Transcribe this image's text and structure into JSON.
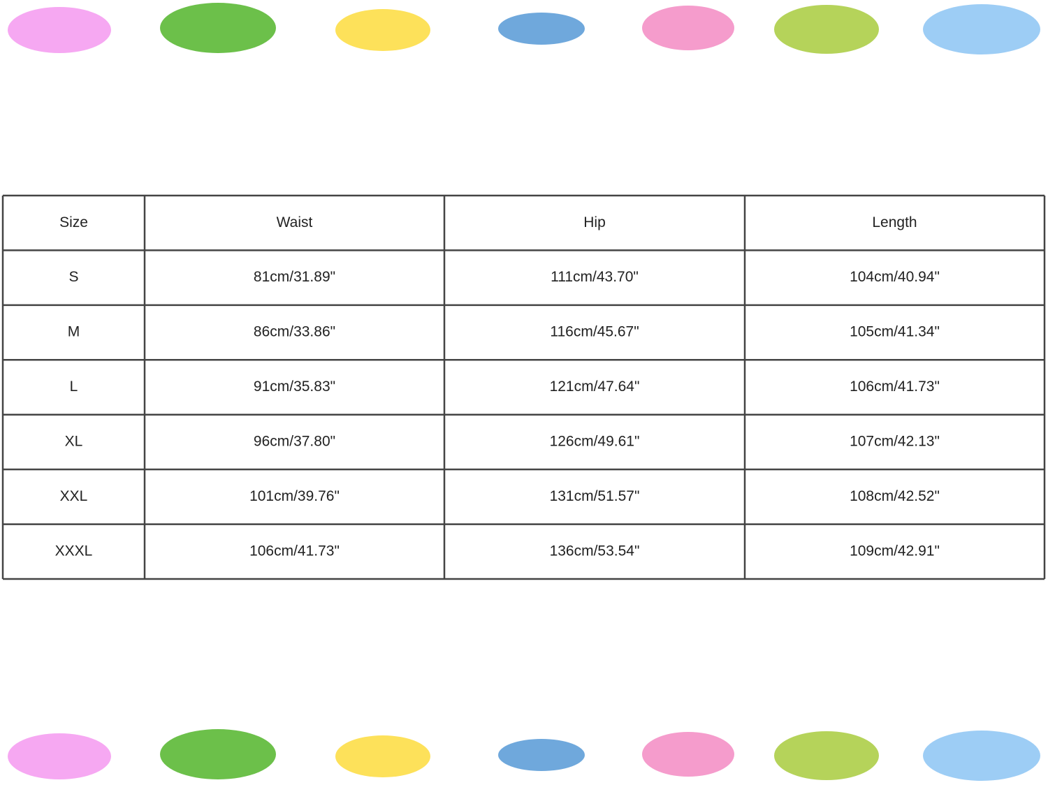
{
  "table": {
    "header": [
      "Size",
      "Waist",
      "Hip",
      "Length"
    ],
    "rows": [
      [
        "S",
        "81cm/31.89\"",
        "111cm/43.70\"",
        "104cm/40.94\""
      ],
      [
        "M",
        "86cm/33.86\"",
        "116cm/45.67\"",
        "105cm/41.34\""
      ],
      [
        "L",
        "91cm/35.83\"",
        "121cm/47.64\"",
        "106cm/41.73\""
      ],
      [
        "XL",
        "96cm/37.80\"",
        "126cm/49.61\"",
        "107cm/42.13\""
      ],
      [
        "XXL",
        "101cm/39.76\"",
        "131cm/51.57\"",
        "108cm/42.52\""
      ],
      [
        "XXXL",
        "106cm/41.73\"",
        "136cm/53.54\"",
        "109cm/42.91\""
      ]
    ]
  }
}
